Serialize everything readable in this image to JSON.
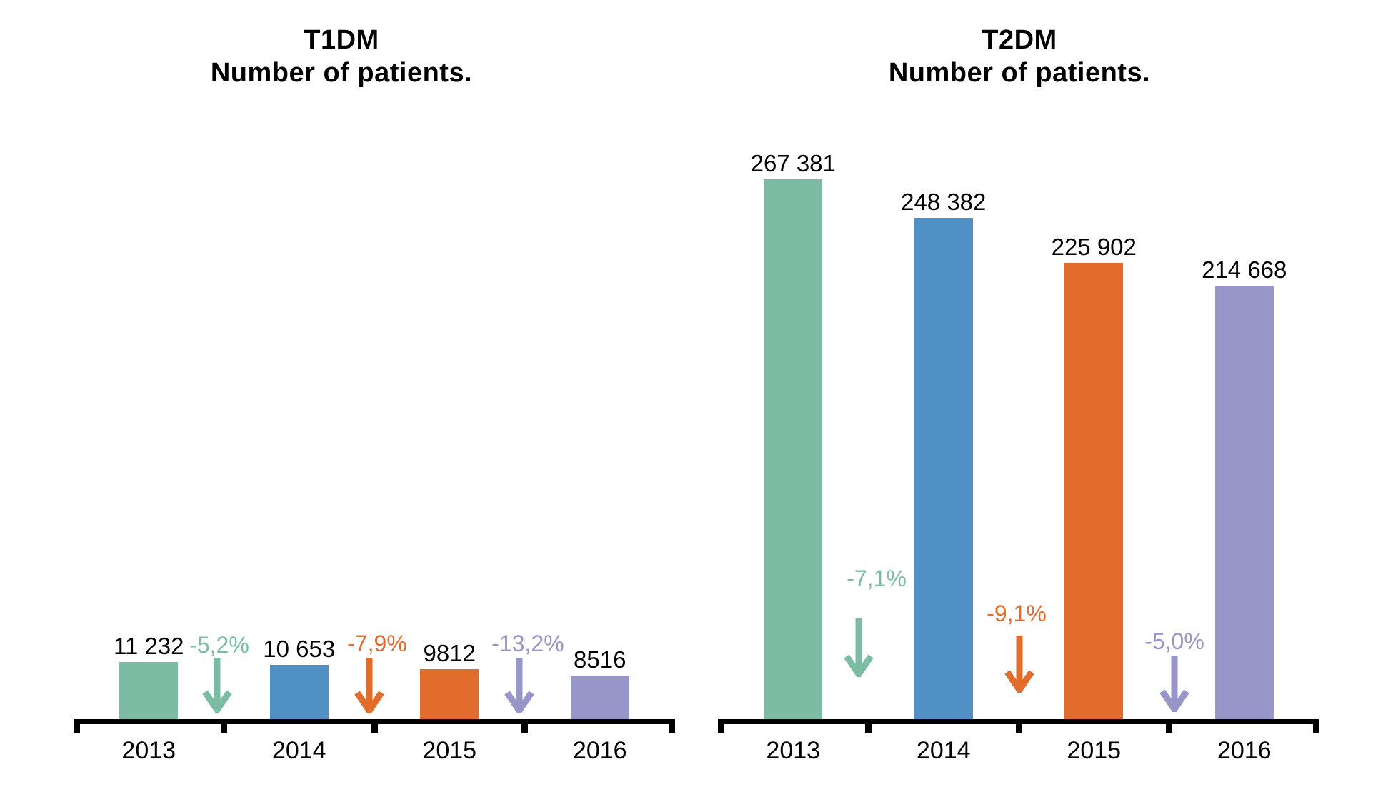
{
  "figure": {
    "background": "#ffffff",
    "text_color": "#000000",
    "axis_color": "#000000"
  },
  "palette": {
    "green": "#7CBCA4",
    "blue": "#5190C4",
    "orange": "#E16C2C",
    "purple": "#9895C8"
  },
  "chart_data": [
    {
      "type": "bar",
      "id": "t1dm",
      "title_line1": "T1DM",
      "title_line2": "Number of patients.",
      "xlabel": "",
      "ylabel": "",
      "legend": "none",
      "grid": false,
      "y_axis_shown": false,
      "ylim": [
        0,
        11232
      ],
      "categories": [
        "2013",
        "2014",
        "2015",
        "2016"
      ],
      "values": [
        11232,
        10653,
        9812,
        8516
      ],
      "value_labels": [
        "11 232",
        "10 653",
        "9812",
        "8516"
      ],
      "bar_colors": [
        "#7CBCA4",
        "#5190C4",
        "#E16C2C",
        "#9895C8"
      ],
      "annotations": [
        {
          "text": "-5,2%",
          "between": [
            "2013",
            "2014"
          ],
          "color": "#7CBCA4",
          "shape": "down-arrow"
        },
        {
          "text": "-7,9%",
          "between": [
            "2014",
            "2015"
          ],
          "color": "#E16C2C",
          "shape": "down-arrow"
        },
        {
          "text": "-13,2%",
          "between": [
            "2015",
            "2016"
          ],
          "color": "#9895C8",
          "shape": "down-arrow"
        }
      ]
    },
    {
      "type": "bar",
      "id": "t2dm",
      "title_line1": "T2DM",
      "title_line2": "Number of patients.",
      "xlabel": "",
      "ylabel": "",
      "legend": "none",
      "grid": false,
      "y_axis_shown": false,
      "ylim": [
        0,
        267381
      ],
      "categories": [
        "2013",
        "2014",
        "2015",
        "2016"
      ],
      "values": [
        267381,
        248382,
        225902,
        214668
      ],
      "value_labels": [
        "267 381",
        "248 382",
        "225 902",
        "214 668"
      ],
      "bar_colors": [
        "#7CBCA4",
        "#5190C4",
        "#E16C2C",
        "#9895C8"
      ],
      "annotations": [
        {
          "text": "-7,1%",
          "between": [
            "2013",
            "2014"
          ],
          "color": "#7CBCA4",
          "shape": "down-arrow"
        },
        {
          "text": "-9,1%",
          "between": [
            "2014",
            "2015"
          ],
          "color": "#E16C2C",
          "shape": "down-arrow"
        },
        {
          "text": "-5,0%",
          "between": [
            "2015",
            "2016"
          ],
          "color": "#9895C8",
          "shape": "down-arrow"
        }
      ]
    }
  ]
}
